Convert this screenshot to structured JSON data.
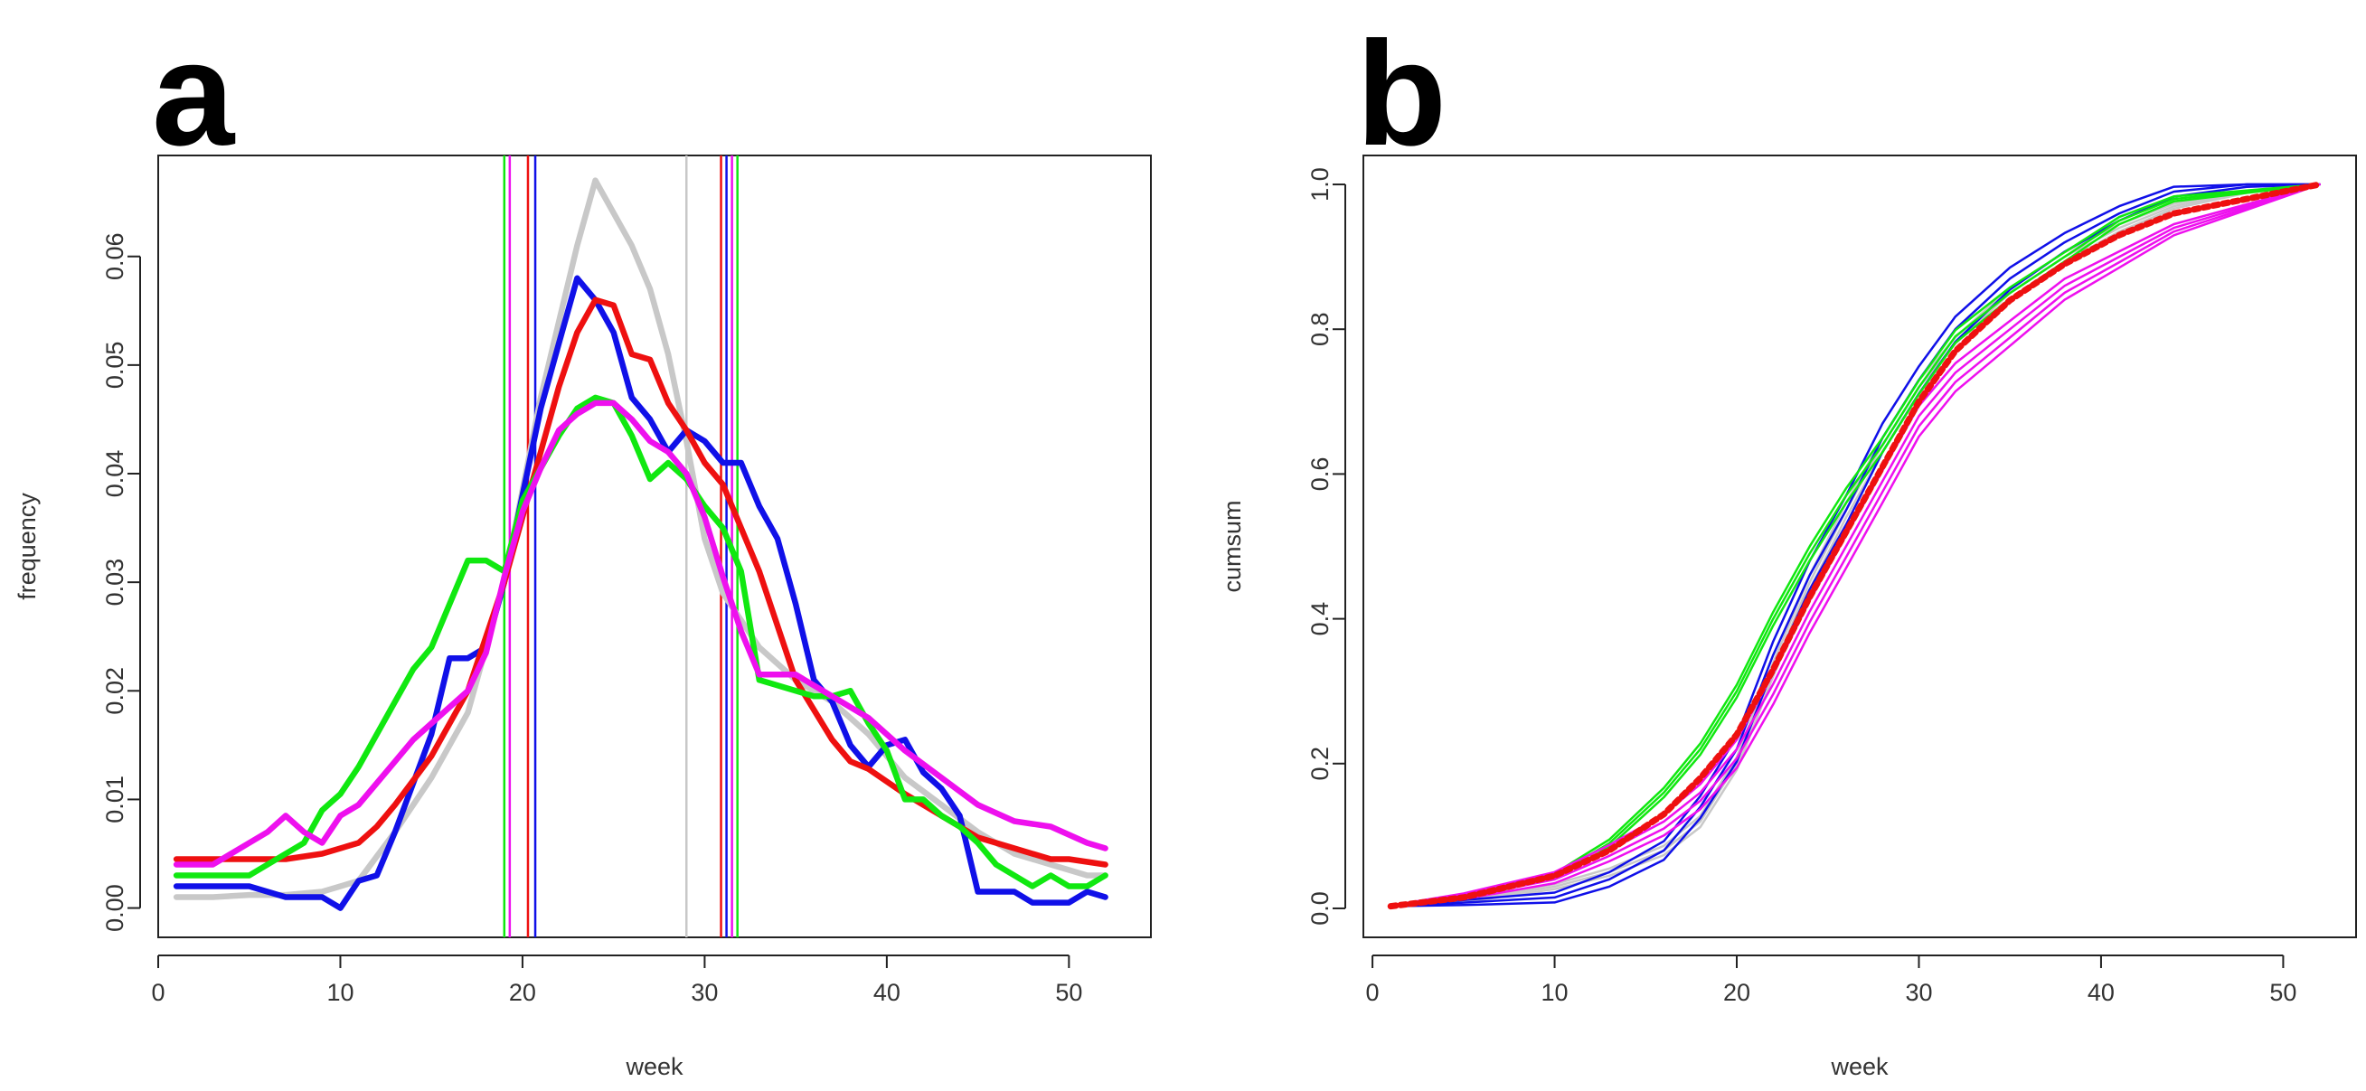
{
  "colors": {
    "gray": "#c8c8c8",
    "blue": "#1010e8",
    "red": "#ee1010",
    "green": "#10e810",
    "magenta": "#ee10ee"
  },
  "chart_data": [
    {
      "panel": "a",
      "type": "line",
      "xlabel": "week",
      "ylabel": "frequency",
      "xlim": [
        0,
        54.5
      ],
      "ylim": [
        -0.0027,
        0.0693
      ],
      "xticks": [
        "0",
        "10",
        "20",
        "30",
        "40",
        "50"
      ],
      "yticks": [
        "0.00",
        "0.01",
        "0.02",
        "0.03",
        "0.04",
        "0.05",
        "0.06"
      ],
      "series": [
        {
          "name": "gray",
          "color": "#c8c8c8",
          "x": [
            1,
            3,
            5,
            7,
            9,
            11,
            13,
            15,
            17,
            19,
            21,
            22,
            23,
            24,
            25,
            26,
            27,
            28,
            29,
            30,
            31,
            33,
            35,
            37,
            39,
            41,
            43,
            45,
            47,
            49,
            51,
            52
          ],
          "values": [
            0.001,
            0.001,
            0.0012,
            0.0012,
            0.0015,
            0.0025,
            0.007,
            0.012,
            0.018,
            0.03,
            0.047,
            0.054,
            0.061,
            0.067,
            0.064,
            0.061,
            0.057,
            0.051,
            0.043,
            0.034,
            0.029,
            0.024,
            0.021,
            0.019,
            0.016,
            0.012,
            0.0095,
            0.007,
            0.005,
            0.004,
            0.003,
            0.003
          ]
        },
        {
          "name": "blue",
          "color": "#1010e8",
          "x": [
            1,
            3,
            4,
            5,
            7,
            8,
            9,
            10,
            11,
            12,
            13,
            14,
            15,
            16,
            17,
            18,
            19,
            20,
            21,
            22,
            23,
            24,
            25,
            26,
            27,
            28,
            29,
            30,
            31,
            32,
            33,
            34,
            35,
            36,
            37,
            38,
            39,
            40,
            41,
            42,
            43,
            44,
            45,
            46,
            47,
            48,
            49,
            50,
            51,
            52
          ],
          "values": [
            0.002,
            0.002,
            0.002,
            0.002,
            0.001,
            0.001,
            0.001,
            0.0,
            0.0025,
            0.003,
            0.007,
            0.0115,
            0.016,
            0.023,
            0.023,
            0.024,
            0.03,
            0.038,
            0.046,
            0.052,
            0.058,
            0.056,
            0.053,
            0.047,
            0.045,
            0.042,
            0.044,
            0.043,
            0.041,
            0.041,
            0.037,
            0.034,
            0.028,
            0.021,
            0.019,
            0.015,
            0.013,
            0.015,
            0.0155,
            0.0125,
            0.011,
            0.0085,
            0.0015,
            0.0015,
            0.0015,
            0.0005,
            0.0005,
            0.0005,
            0.0015,
            0.001
          ]
        },
        {
          "name": "red",
          "color": "#ee1010",
          "x": [
            1,
            3,
            5,
            7,
            9,
            11,
            12,
            13,
            15,
            17,
            19,
            20,
            21,
            22,
            23,
            24,
            25,
            26,
            27,
            28,
            29,
            30,
            31,
            33,
            35,
            37,
            38,
            39,
            41,
            43,
            45,
            47,
            49,
            50,
            52
          ],
          "values": [
            0.0045,
            0.0045,
            0.0045,
            0.0045,
            0.005,
            0.006,
            0.0075,
            0.0095,
            0.014,
            0.02,
            0.03,
            0.036,
            0.042,
            0.048,
            0.053,
            0.056,
            0.0555,
            0.051,
            0.0505,
            0.0465,
            0.044,
            0.041,
            0.039,
            0.031,
            0.021,
            0.0155,
            0.0135,
            0.0128,
            0.0105,
            0.0085,
            0.0065,
            0.0055,
            0.0045,
            0.0045,
            0.004
          ]
        },
        {
          "name": "green",
          "color": "#10e810",
          "x": [
            1,
            3,
            5,
            7,
            8,
            9,
            10,
            11,
            12,
            13,
            14,
            15,
            16,
            17,
            18,
            19,
            20,
            21,
            22,
            23,
            24,
            25,
            26,
            27,
            28,
            29,
            30,
            31,
            32,
            33,
            34,
            35,
            36,
            37,
            38,
            39,
            40,
            41,
            42,
            43,
            44,
            45,
            46,
            47,
            48,
            49,
            50,
            51,
            52
          ],
          "values": [
            0.003,
            0.003,
            0.003,
            0.005,
            0.006,
            0.009,
            0.0105,
            0.013,
            0.016,
            0.019,
            0.022,
            0.024,
            0.028,
            0.032,
            0.032,
            0.031,
            0.0375,
            0.0405,
            0.0435,
            0.046,
            0.047,
            0.0465,
            0.0435,
            0.0395,
            0.041,
            0.0395,
            0.037,
            0.035,
            0.031,
            0.021,
            0.0205,
            0.02,
            0.0195,
            0.0195,
            0.02,
            0.017,
            0.0145,
            0.01,
            0.01,
            0.0085,
            0.0075,
            0.006,
            0.004,
            0.003,
            0.002,
            0.003,
            0.002,
            0.002,
            0.003
          ]
        },
        {
          "name": "magenta",
          "color": "#ee10ee",
          "x": [
            1,
            3,
            5,
            6,
            7,
            8,
            9,
            10,
            11,
            12,
            13,
            14,
            15,
            16,
            17,
            18,
            19,
            20,
            21,
            22,
            23,
            24,
            25,
            26,
            27,
            28,
            29,
            30,
            31,
            32,
            33,
            34,
            35,
            37,
            39,
            41,
            43,
            45,
            47,
            49,
            51,
            52
          ],
          "values": [
            0.004,
            0.004,
            0.006,
            0.007,
            0.0085,
            0.007,
            0.006,
            0.0085,
            0.0095,
            0.0115,
            0.0135,
            0.0155,
            0.017,
            0.0185,
            0.02,
            0.0235,
            0.0305,
            0.0365,
            0.0405,
            0.044,
            0.0455,
            0.0465,
            0.0465,
            0.045,
            0.043,
            0.042,
            0.04,
            0.036,
            0.0305,
            0.0255,
            0.0215,
            0.0215,
            0.0215,
            0.0195,
            0.0175,
            0.0145,
            0.012,
            0.0095,
            0.008,
            0.0075,
            0.006,
            0.0055
          ]
        }
      ],
      "vlines": [
        {
          "x": 19.0,
          "color": "#10e810"
        },
        {
          "x": 19.3,
          "color": "#ee10ee"
        },
        {
          "x": 20.3,
          "color": "#ee1010"
        },
        {
          "x": 20.7,
          "color": "#1010e8"
        },
        {
          "x": 29.0,
          "color": "#c8c8c8"
        },
        {
          "x": 30.9,
          "color": "#ee1010"
        },
        {
          "x": 31.2,
          "color": "#1010e8"
        },
        {
          "x": 31.5,
          "color": "#ee10ee"
        },
        {
          "x": 31.8,
          "color": "#10e810"
        }
      ]
    },
    {
      "panel": "b",
      "type": "line",
      "xlabel": "week",
      "ylabel": "cumsum",
      "xlim": [
        -0.5,
        54.0
      ],
      "ylim": [
        -0.04,
        1.04
      ],
      "xticks": [
        "0",
        "10",
        "20",
        "30",
        "40",
        "50"
      ],
      "yticks": [
        "0.0",
        "0.2",
        "0.4",
        "0.6",
        "0.8",
        "1.0"
      ],
      "x": [
        1,
        5,
        10,
        13,
        16,
        18,
        20,
        22,
        24,
        26,
        28,
        30,
        32,
        35,
        38,
        41,
        44,
        48,
        52
      ],
      "series": [
        {
          "name": "gray",
          "color": "#c8c8c8",
          "values": [
            0.003,
            0.01,
            0.03,
            0.05,
            0.08,
            0.12,
            0.2,
            0.33,
            0.45,
            0.55,
            0.64,
            0.72,
            0.78,
            0.85,
            0.9,
            0.94,
            0.97,
            0.99,
            1.0
          ],
          "offsets": [
            -0.01,
            0.0,
            0.01
          ]
        },
        {
          "name": "blue",
          "color": "#1010e8",
          "values": [
            0.003,
            0.008,
            0.015,
            0.04,
            0.08,
            0.14,
            0.22,
            0.35,
            0.46,
            0.55,
            0.65,
            0.73,
            0.8,
            0.87,
            0.92,
            0.96,
            0.99,
            1.0,
            1.0
          ],
          "offsets": [
            -0.02,
            0.0,
            0.02
          ]
        },
        {
          "name": "green",
          "color": "#10e810",
          "values": [
            0.004,
            0.015,
            0.045,
            0.09,
            0.16,
            0.22,
            0.3,
            0.4,
            0.49,
            0.57,
            0.64,
            0.72,
            0.79,
            0.85,
            0.9,
            0.95,
            0.98,
            0.99,
            1.0
          ],
          "offsets": [
            -0.01,
            0.0,
            0.01
          ]
        },
        {
          "name": "magenta",
          "color": "#ee10ee",
          "values": [
            0.004,
            0.018,
            0.045,
            0.08,
            0.12,
            0.16,
            0.22,
            0.31,
            0.41,
            0.5,
            0.59,
            0.68,
            0.74,
            0.8,
            0.86,
            0.9,
            0.94,
            0.97,
            1.0
          ],
          "offsets": [
            -0.03,
            -0.015,
            0.0,
            0.015
          ]
        },
        {
          "name": "red",
          "color": "#ee1010",
          "values": [
            0.003,
            0.015,
            0.045,
            0.08,
            0.13,
            0.18,
            0.24,
            0.33,
            0.43,
            0.52,
            0.61,
            0.7,
            0.77,
            0.84,
            0.89,
            0.93,
            0.96,
            0.98,
            1.0
          ],
          "offsets": [
            0.0
          ]
        }
      ]
    }
  ]
}
